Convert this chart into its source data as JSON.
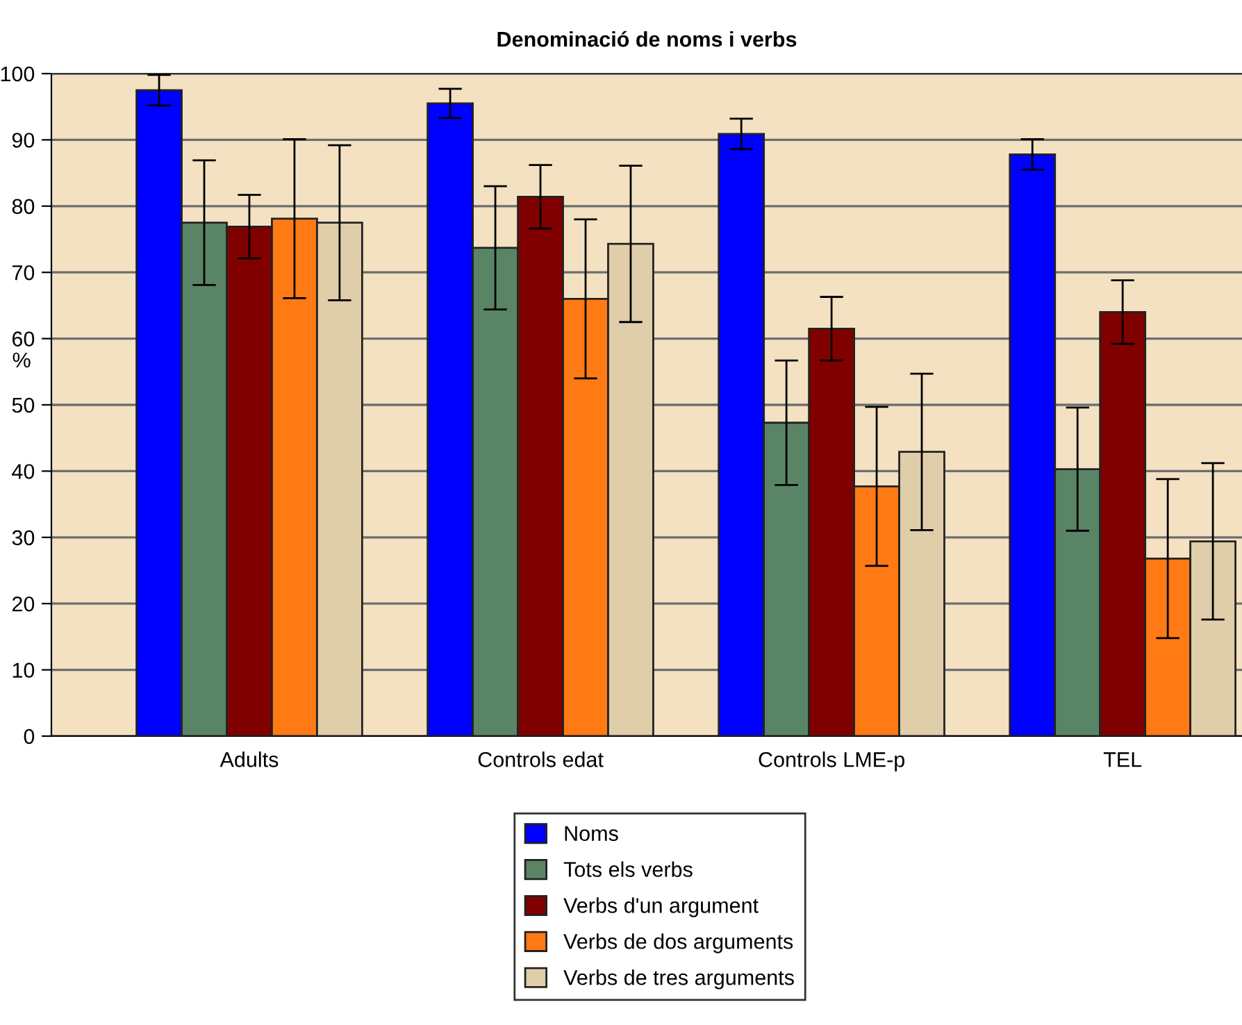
{
  "chart_data": {
    "type": "bar",
    "title": "Denominació de noms i verbs",
    "ylabel": "%",
    "categories": [
      "Adults",
      "Controls edat",
      "Controls LME-p",
      "TEL"
    ],
    "series": [
      {
        "name": "Noms",
        "color": "#0000ff",
        "values": [
          97.5,
          95.5,
          90.9,
          87.8
        ],
        "errors": [
          2.3,
          2.2,
          2.3,
          2.3
        ]
      },
      {
        "name": "Tots els verbs",
        "color": "#5a8466",
        "values": [
          77.5,
          73.7,
          47.3,
          40.3
        ],
        "errors": [
          9.4,
          9.3,
          9.4,
          9.3
        ]
      },
      {
        "name": "Verbs d'un argument",
        "color": "#800000",
        "values": [
          76.9,
          81.4,
          61.5,
          64.0
        ],
        "errors": [
          4.8,
          4.8,
          4.8,
          4.8
        ]
      },
      {
        "name": "Verbs de dos arguments",
        "color": "#ff7a14",
        "values": [
          78.1,
          66.0,
          37.7,
          26.8
        ],
        "errors": [
          12.0,
          12.0,
          12.0,
          12.0
        ]
      },
      {
        "name": "Verbs de tres arguments",
        "color": "#e0cdaa",
        "values": [
          77.5,
          74.3,
          42.9,
          29.4
        ],
        "errors": [
          11.7,
          11.8,
          11.8,
          11.8
        ]
      }
    ],
    "ylim": [
      0,
      100
    ],
    "yticks": [
      0,
      10,
      20,
      30,
      40,
      50,
      60,
      70,
      80,
      90,
      100
    ],
    "grid": "y",
    "legend": "bottom"
  }
}
